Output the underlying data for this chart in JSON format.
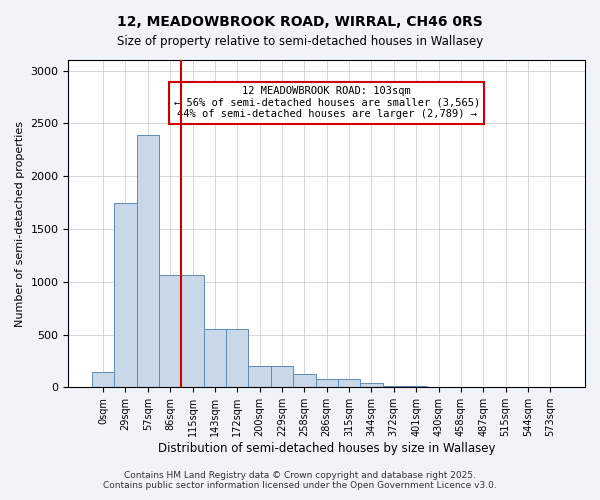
{
  "title1": "12, MEADOWBROOK ROAD, WIRRAL, CH46 0RS",
  "title2": "Size of property relative to semi-detached houses in Wallasey",
  "xlabel": "Distribution of semi-detached houses by size in Wallasey",
  "ylabel": "Number of semi-detached properties",
  "bar_color": "#c8d8e8",
  "bar_edge_color": "#5b8db8",
  "highlight_line_color": "#cc0000",
  "annotation_box_color": "#cc0000",
  "annotation_text": "12 MEADOWBROOK ROAD: 103sqm\n← 56% of semi-detached houses are smaller (3,565)\n44% of semi-detached houses are larger (2,789) →",
  "footer1": "Contains HM Land Registry data © Crown copyright and database right 2025.",
  "footer2": "Contains public sector information licensed under the Open Government Licence v3.0.",
  "categories": [
    "0sqm",
    "29sqm",
    "57sqm",
    "86sqm",
    "115sqm",
    "143sqm",
    "172sqm",
    "200sqm",
    "229sqm",
    "258sqm",
    "286sqm",
    "315sqm",
    "344sqm",
    "372sqm",
    "401sqm",
    "430sqm",
    "458sqm",
    "487sqm",
    "515sqm",
    "544sqm",
    "573sqm"
  ],
  "values": [
    150,
    1750,
    2390,
    1060,
    1060,
    550,
    550,
    205,
    200,
    125,
    80,
    80,
    40,
    15,
    10,
    5,
    3,
    2,
    1,
    1,
    0
  ],
  "ylim": [
    0,
    3100
  ],
  "property_bin_index": 3,
  "background_color": "#f0f4f8",
  "plot_bg_color": "#ffffff"
}
